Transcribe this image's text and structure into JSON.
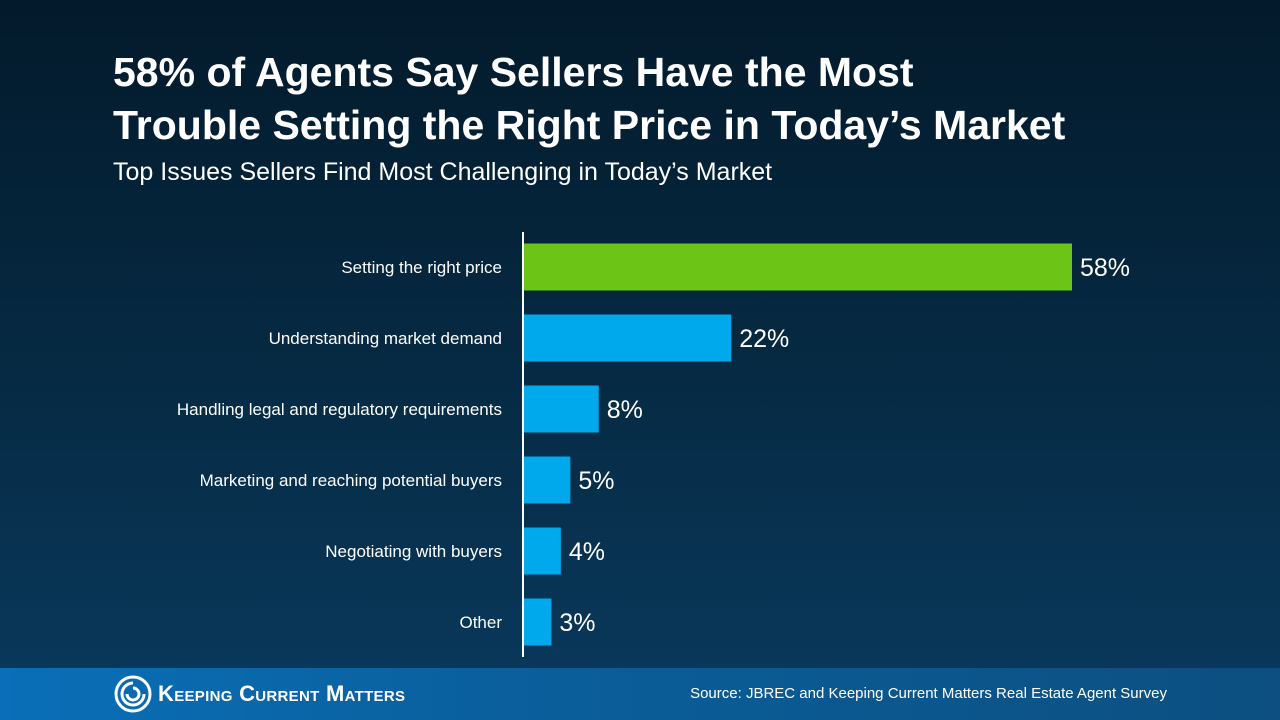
{
  "header": {
    "title_line1": "58% of Agents Say Sellers Have the Most",
    "title_line2": "Trouble Setting the Right Price in Today’s Market",
    "subtitle": "Top Issues Sellers Find Most Challenging in Today’s Market"
  },
  "chart_data": {
    "type": "bar",
    "orientation": "horizontal",
    "title": "58% of Agents Say Sellers Have the Most Trouble Setting the Right Price in Today’s Market",
    "subtitle": "Top Issues Sellers Find Most Challenging in Today’s Market",
    "categories": [
      "Setting the right price",
      "Understanding market demand",
      "Handling legal and regulatory requirements",
      "Marketing and reaching potential buyers",
      "Negotiating with buyers",
      "Other"
    ],
    "values": [
      58,
      22,
      8,
      5,
      4,
      3
    ],
    "value_labels": [
      "58%",
      "22%",
      "8%",
      "5%",
      "4%",
      "3%"
    ],
    "highlight_color": "#6cc417",
    "bar_color": "#00a9ec",
    "xlim": [
      0,
      70
    ],
    "grid": false,
    "legend": "none"
  },
  "footer": {
    "logo_text": "Keeping Current Matters",
    "logo_icon": "kcm-swirl-icon",
    "source": "Source: JBREC and Keeping Current Matters Real Estate Agent Survey"
  }
}
